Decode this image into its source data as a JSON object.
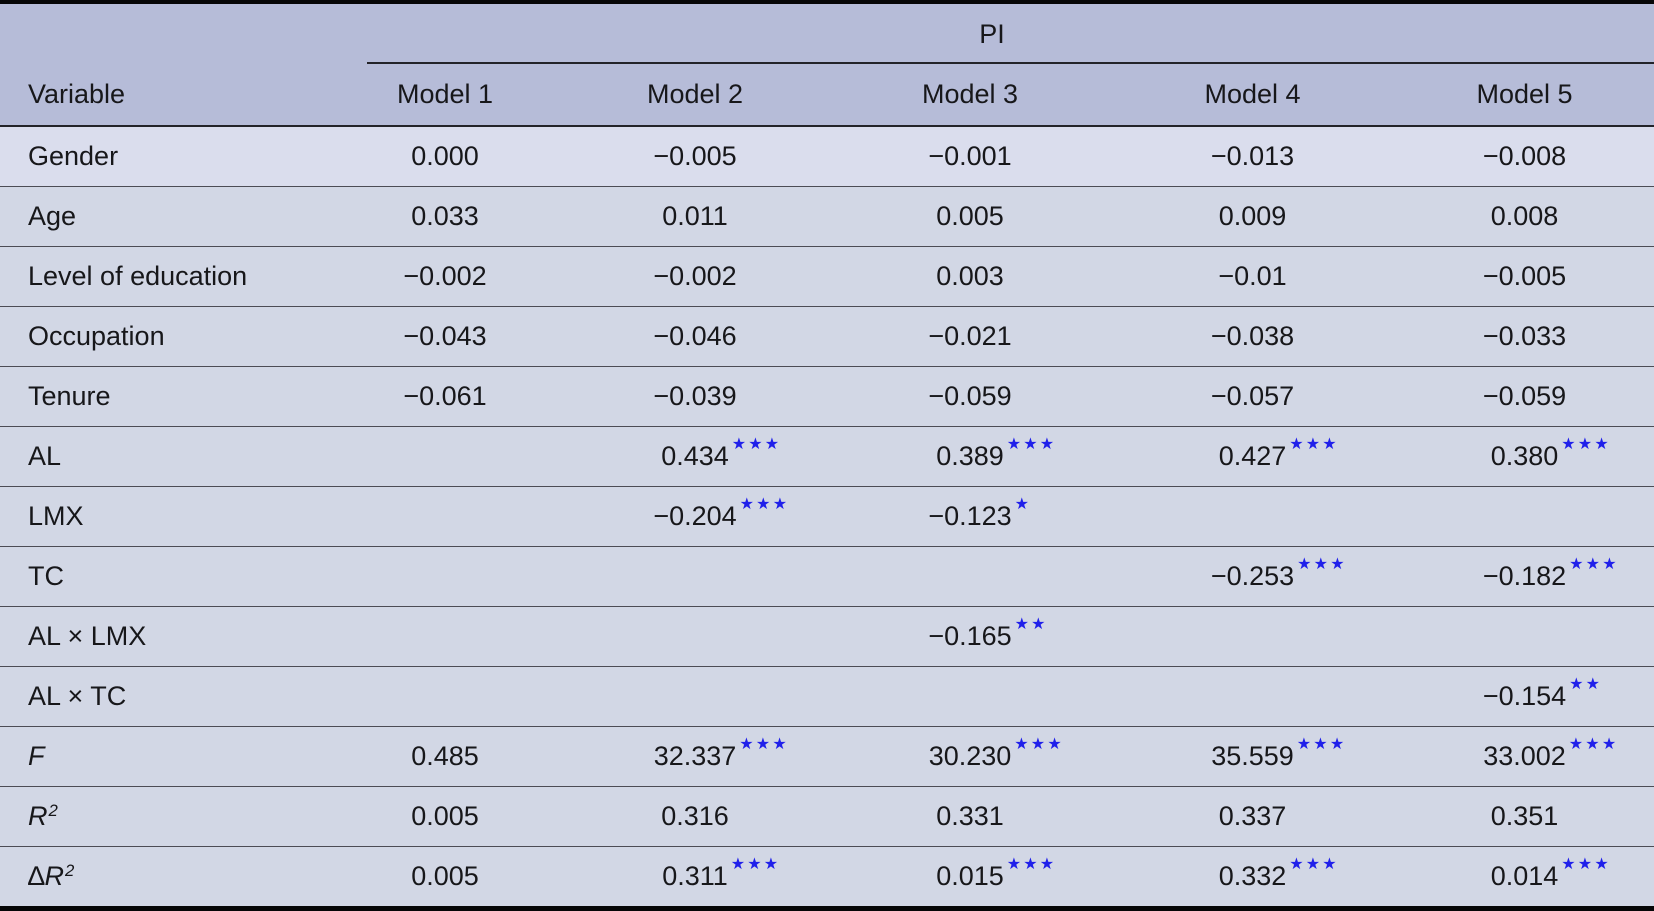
{
  "table": {
    "group_header": "PI",
    "corner_header": "Variable",
    "model_headers": [
      "Model 1",
      "Model 2",
      "Model 3",
      "Model 4",
      "Model 5"
    ],
    "rows": [
      {
        "label": "Gender",
        "cells": [
          {
            "v": "0.000"
          },
          {
            "v": "−0.005"
          },
          {
            "v": "−0.001"
          },
          {
            "v": "−0.013"
          },
          {
            "v": "−0.008"
          }
        ]
      },
      {
        "label": "Age",
        "cells": [
          {
            "v": "0.033"
          },
          {
            "v": "0.011"
          },
          {
            "v": "0.005"
          },
          {
            "v": "0.009"
          },
          {
            "v": "0.008"
          }
        ]
      },
      {
        "label": "Level of education",
        "cells": [
          {
            "v": "−0.002"
          },
          {
            "v": "−0.002"
          },
          {
            "v": "0.003"
          },
          {
            "v": "−0.01"
          },
          {
            "v": "−0.005"
          }
        ]
      },
      {
        "label": "Occupation",
        "cells": [
          {
            "v": "−0.043"
          },
          {
            "v": "−0.046"
          },
          {
            "v": "−0.021"
          },
          {
            "v": "−0.038"
          },
          {
            "v": "−0.033"
          }
        ]
      },
      {
        "label": "Tenure",
        "cells": [
          {
            "v": "−0.061"
          },
          {
            "v": "−0.039"
          },
          {
            "v": "−0.059"
          },
          {
            "v": "−0.057"
          },
          {
            "v": "−0.059"
          }
        ]
      },
      {
        "label": "AL",
        "cells": [
          {
            "v": ""
          },
          {
            "v": "0.434",
            "stars": "***"
          },
          {
            "v": "0.389",
            "stars": "***"
          },
          {
            "v": "0.427",
            "stars": "***"
          },
          {
            "v": "0.380",
            "stars": "***"
          }
        ]
      },
      {
        "label": "LMX",
        "cells": [
          {
            "v": ""
          },
          {
            "v": "−0.204",
            "stars": "***"
          },
          {
            "v": "−0.123",
            "stars": "*"
          },
          {
            "v": ""
          },
          {
            "v": ""
          }
        ]
      },
      {
        "label": "TC",
        "cells": [
          {
            "v": ""
          },
          {
            "v": ""
          },
          {
            "v": ""
          },
          {
            "v": "−0.253",
            "stars": "***"
          },
          {
            "v": "−0.182",
            "stars": "***"
          }
        ]
      },
      {
        "label": "AL × LMX",
        "cells": [
          {
            "v": ""
          },
          {
            "v": ""
          },
          {
            "v": "−0.165",
            "stars": "**"
          },
          {
            "v": ""
          },
          {
            "v": ""
          }
        ]
      },
      {
        "label": "AL × TC",
        "cells": [
          {
            "v": ""
          },
          {
            "v": ""
          },
          {
            "v": ""
          },
          {
            "v": ""
          },
          {
            "v": "−0.154",
            "stars": "**"
          }
        ]
      },
      {
        "label": "F",
        "label_style": "italic",
        "cells": [
          {
            "v": "0.485"
          },
          {
            "v": "32.337",
            "stars": "***"
          },
          {
            "v": "30.230",
            "stars": "***"
          },
          {
            "v": "35.559",
            "stars": "***"
          },
          {
            "v": "33.002",
            "stars": "***"
          }
        ]
      },
      {
        "label": "R",
        "label_sup": "2",
        "label_style": "italic",
        "cells": [
          {
            "v": "0.005"
          },
          {
            "v": "0.316"
          },
          {
            "v": "0.331"
          },
          {
            "v": "0.337"
          },
          {
            "v": "0.351"
          }
        ]
      },
      {
        "label_prefix": "∆",
        "label": "R",
        "label_sup": "2",
        "label_style": "italic",
        "cells": [
          {
            "v": "0.005"
          },
          {
            "v": "0.311",
            "stars": "***"
          },
          {
            "v": "0.015",
            "stars": "***"
          },
          {
            "v": "0.332",
            "stars": "***"
          },
          {
            "v": "0.014",
            "stars": "***"
          }
        ]
      }
    ]
  },
  "colors": {
    "header_bg": "#b6bcd8",
    "row_bg": "#d2d7e5",
    "first_row_bg": "#dadded",
    "text": "#17171a",
    "line": "#4c4c55",
    "strong_line": "#232329",
    "frame": "#060607",
    "star": "#2020ea"
  }
}
